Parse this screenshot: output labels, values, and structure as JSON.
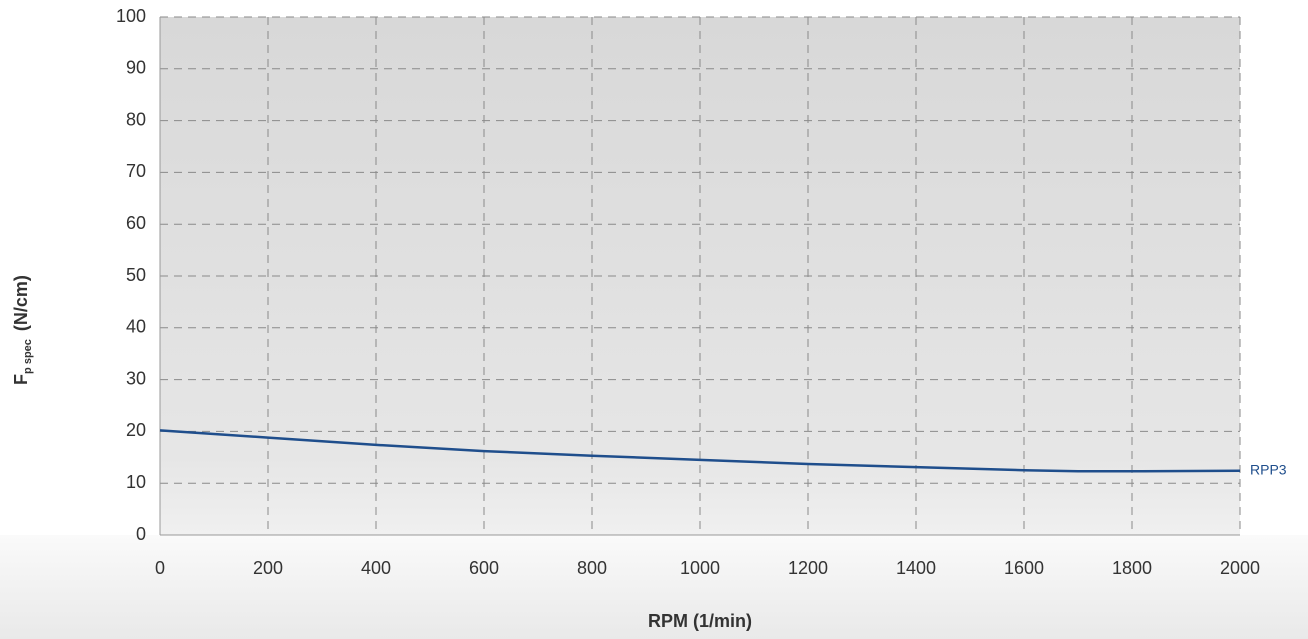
{
  "chart_data": {
    "type": "line",
    "ylabel": {
      "main": "F",
      "sub": "p spec",
      "unit": "(N/cm)"
    },
    "xlabel": "RPM (1/min)",
    "x": [
      0,
      200,
      400,
      600,
      800,
      1000,
      1200,
      1400,
      1600,
      1700,
      1800,
      2000
    ],
    "series": [
      {
        "name": "RPP3",
        "color": "#1f4e8c",
        "values": [
          20.2,
          18.8,
          17.4,
          16.2,
          15.3,
          14.5,
          13.7,
          13.1,
          12.5,
          12.3,
          12.3,
          12.4
        ]
      }
    ],
    "xlim": [
      0,
      2000
    ],
    "xticks": [
      0,
      200,
      400,
      600,
      800,
      1000,
      1200,
      1400,
      1600,
      1800,
      2000
    ],
    "ylim": [
      0,
      100
    ],
    "yticks": [
      0,
      10,
      20,
      30,
      40,
      50,
      60,
      70,
      80,
      90,
      100
    ],
    "grid": true
  }
}
